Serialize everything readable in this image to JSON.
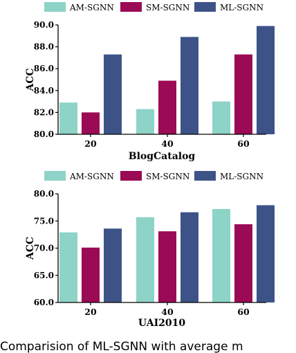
{
  "chart_data": [
    {
      "type": "bar",
      "categories": [
        "20",
        "40",
        "60"
      ],
      "series": [
        {
          "name": "AM-SGNN",
          "color": "#8dd3c7",
          "values": [
            82.9,
            82.3,
            83.0
          ]
        },
        {
          "name": "SM-SGNN",
          "color": "#9b0a55",
          "values": [
            82.0,
            84.9,
            87.3
          ]
        },
        {
          "name": "ML-SGNN",
          "color": "#3d5388",
          "values": [
            87.3,
            88.9,
            89.9
          ]
        }
      ],
      "xlabel": "BlogCatalog",
      "ylabel": "ACC",
      "ylim": [
        80.0,
        90.0
      ],
      "yticks": [
        80.0,
        82.0,
        84.0,
        86.0,
        88.0,
        90.0
      ],
      "ytick_labels": [
        "80.0",
        "82.0",
        "84.0",
        "86.0",
        "88.0",
        "90.0"
      ],
      "legend": "top",
      "grid": false
    },
    {
      "type": "bar",
      "categories": [
        "20",
        "40",
        "60"
      ],
      "series": [
        {
          "name": "AM-SGNN",
          "color": "#8dd3c7",
          "values": [
            72.9,
            75.7,
            77.2
          ]
        },
        {
          "name": "SM-SGNN",
          "color": "#9b0a55",
          "values": [
            70.1,
            73.1,
            74.4
          ]
        },
        {
          "name": "ML-SGNN",
          "color": "#3d5388",
          "values": [
            73.6,
            76.6,
            77.9
          ]
        }
      ],
      "xlabel": "UAI2010",
      "ylabel": "ACC",
      "ylim": [
        60.0,
        80.0
      ],
      "yticks": [
        60.0,
        65.0,
        70.0,
        75.0,
        80.0
      ],
      "ytick_labels": [
        "60.0",
        "65.0",
        "70.0",
        "75.0",
        "80.0"
      ],
      "legend": "top",
      "grid": false
    }
  ],
  "caption": "Comparision of ML-SGNN with average m"
}
